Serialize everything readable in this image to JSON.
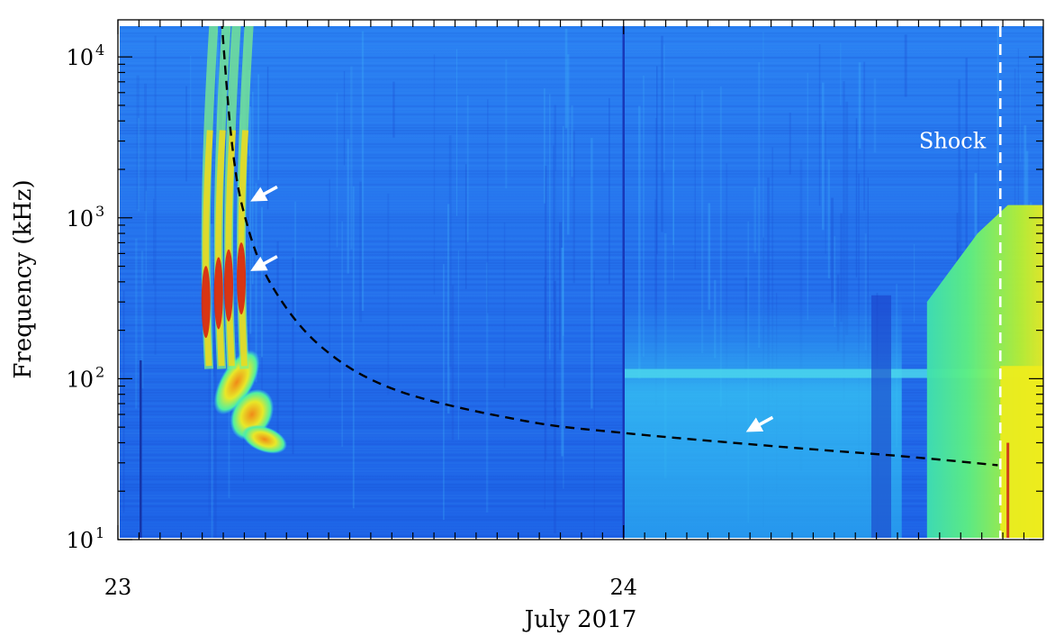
{
  "chart_data": {
    "type": "heatmap",
    "title": "",
    "xlabel": "July 2017",
    "ylabel": "Frequency (kHz)",
    "x_unit": "days since 2017-07-23",
    "xlim": [
      0.0,
      1.83
    ],
    "ylim": [
      10,
      17000
    ],
    "yscale": "log",
    "x_tick_labels": [
      {
        "value": 0,
        "label": "23"
      },
      {
        "value": 1,
        "label": "24"
      }
    ],
    "y_tick_labels": [
      {
        "exponent": 1,
        "value": 10
      },
      {
        "exponent": 2,
        "value": 100
      },
      {
        "exponent": 3,
        "value": 1000
      },
      {
        "exponent": 4,
        "value": 10000
      }
    ],
    "y_tick_base": "10",
    "colormap": [
      "#1e3fd0",
      "#1f6ff0",
      "#2aa8f5",
      "#41e2e8",
      "#5cf09a",
      "#9df03a",
      "#ecec20",
      "#f59a18",
      "#e83a10",
      "#c8140e"
    ],
    "background_colors": {
      "low": "#1d62e6",
      "high": "#2a7ff2",
      "dark_stripe": "#1646c8"
    },
    "fit_curve": {
      "style": "dashed",
      "color": "#000000",
      "description_points": [
        {
          "x": 0.205,
          "y": 17000
        },
        {
          "x": 0.225,
          "y": 3000
        },
        {
          "x": 0.25,
          "y": 1050
        },
        {
          "x": 0.3,
          "y": 400
        },
        {
          "x": 0.4,
          "y": 160
        },
        {
          "x": 0.55,
          "y": 85
        },
        {
          "x": 0.8,
          "y": 55
        },
        {
          "x": 1.0,
          "y": 46
        },
        {
          "x": 1.3,
          "y": 38
        },
        {
          "x": 1.55,
          "y": 33
        },
        {
          "x": 1.74,
          "y": 29
        }
      ]
    },
    "shock_line": {
      "x": 1.745,
      "label": "Shock",
      "color": "#ffffff",
      "style": "dashed"
    },
    "arrows": [
      {
        "x": 0.265,
        "y": 1300
      },
      {
        "x": 0.265,
        "y": 480
      },
      {
        "x": 1.245,
        "y": 48
      }
    ],
    "vertical_lines": [
      {
        "x": 1.0,
        "color": "#1838b8"
      },
      {
        "x": 0.045,
        "color": "#1434a8",
        "ymax": 130
      }
    ],
    "burst_features": [
      {
        "name": "type-III-bursts",
        "x_range": [
          0.16,
          0.27
        ],
        "f_range": [
          110,
          17000
        ],
        "intensity": "red-core"
      },
      {
        "name": "type-II-lane",
        "x_range": [
          0.18,
          0.38
        ],
        "f_range": [
          35,
          120
        ],
        "intensity": "yellow-orange"
      },
      {
        "name": "enhanced-band-24",
        "x_range": [
          1.0,
          1.55
        ],
        "f_range": [
          10,
          330
        ],
        "intensity": "cyan"
      },
      {
        "name": "shock-region",
        "x_range": [
          1.6,
          1.83
        ],
        "f_range": [
          10,
          1200
        ],
        "intensity": "green-yellow"
      }
    ]
  }
}
